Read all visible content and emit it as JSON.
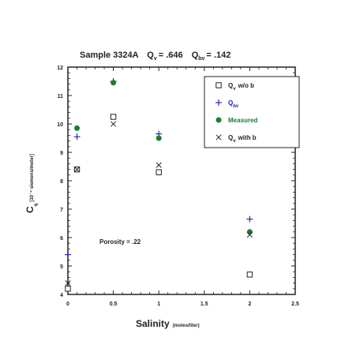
{
  "chart_data": {
    "type": "scatter",
    "title": "Sample 3324A",
    "title_qv": "Q",
    "title_qv_sub": "v",
    "title_qv_value": "= .646",
    "title_qbv": "Q",
    "title_qbv_sub": "bv",
    "title_qbv_value": "= .142",
    "xlabel": "Salinity",
    "xlabel_unit": "(moles/liter)",
    "ylabel": "C",
    "ylabel_sub": "q",
    "ylabel_unit": "[10⁻⁴ siemens/meter]",
    "xlim": [
      0,
      2.5
    ],
    "ylim": [
      4,
      12
    ],
    "xticks": [
      0,
      0.5,
      1,
      1.5,
      2,
      2.5
    ],
    "xtick_labels": [
      "0",
      "0.5",
      "1",
      "1.5",
      "2",
      "2.5"
    ],
    "yticks": [
      4,
      5,
      6,
      7,
      8,
      9,
      10,
      11,
      12
    ],
    "ytick_labels": [
      "4",
      "5",
      "6",
      "7",
      "8",
      "9",
      "10",
      "11",
      "12"
    ],
    "grid": false,
    "legend_position": "top-right",
    "annotation": "Porosity = .22",
    "series": [
      {
        "name": "Q",
        "name_sub": "v",
        "name_rest": "w/o b",
        "marker": "square",
        "color": "#222222",
        "x": [
          0,
          0.1,
          0.5,
          1,
          2
        ],
        "y": [
          4.2,
          8.4,
          10.25,
          8.3,
          4.7
        ]
      },
      {
        "name": "Q",
        "name_sub": "bv",
        "name_rest": "",
        "marker": "plus",
        "color": "#1a1ab4",
        "x": [
          0,
          0.1,
          0.5,
          1,
          2
        ],
        "y": [
          5.4,
          9.55,
          11.5,
          9.65,
          6.65
        ]
      },
      {
        "name": "Measured",
        "name_sub": "",
        "name_rest": "",
        "marker": "circle",
        "color": "#1e7a2e",
        "x": [
          0.1,
          0.5,
          1,
          2
        ],
        "y": [
          9.85,
          11.45,
          9.5,
          6.2
        ]
      },
      {
        "name": "Q",
        "name_sub": "v",
        "name_rest": "with b",
        "marker": "x",
        "color": "#222222",
        "x": [
          0,
          0.1,
          0.5,
          1,
          2
        ],
        "y": [
          4.4,
          8.4,
          10.0,
          8.55,
          6.1
        ]
      }
    ]
  }
}
